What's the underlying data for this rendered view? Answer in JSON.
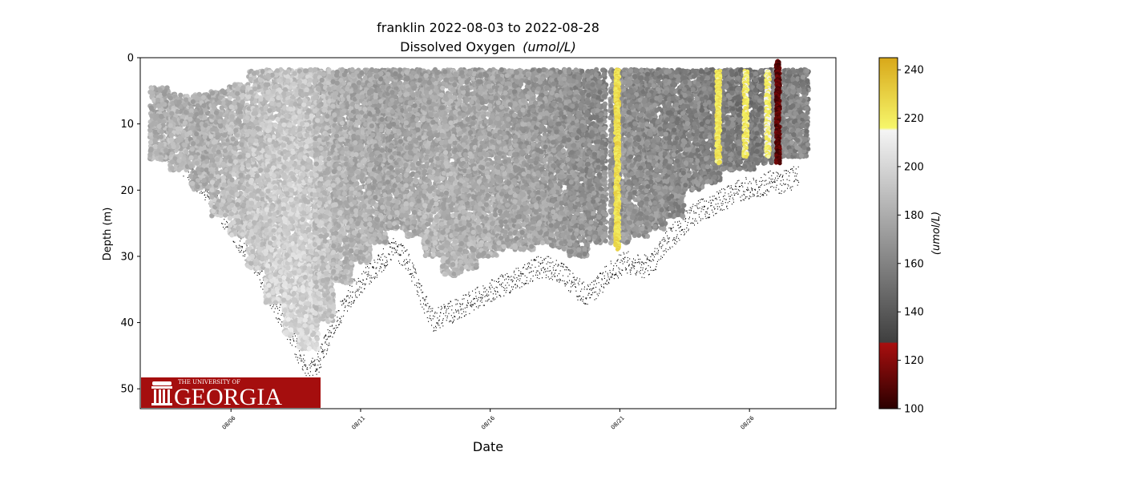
{
  "chart_data": {
    "type": "scatter",
    "title": "franklin 2022-08-03 to 2022-08-28",
    "subtitle": "Dissolved Oxygen",
    "subtitle_unit": "(umol/L)",
    "xlabel": "Date",
    "ylabel": "Depth (m)",
    "x_tick_labels": [
      "08/06",
      "08/11",
      "08/16",
      "08/21",
      "08/26"
    ],
    "x_tick_values": [
      "2022-08-06",
      "2022-08-11",
      "2022-08-16",
      "2022-08-21",
      "2022-08-26"
    ],
    "xlim": [
      "2022-08-02T12:00",
      "2022-08-29T08:00"
    ],
    "ylim": [
      53,
      0
    ],
    "y_ticks": [
      0,
      10,
      20,
      30,
      40,
      50
    ],
    "y_inverted": true,
    "grid": false,
    "colorbar": {
      "label": "(umol/L)",
      "range": [
        100,
        245
      ],
      "ticks": [
        100,
        120,
        140,
        160,
        180,
        200,
        220,
        240
      ],
      "stops": [
        {
          "value": 100,
          "color": "#2b0000"
        },
        {
          "value": 127,
          "color": "#a80f0f"
        },
        {
          "value": 127.5,
          "color": "#3f3f3f"
        },
        {
          "value": 215,
          "color": "#f5f5f5"
        },
        {
          "value": 216,
          "color": "#f6f66a"
        },
        {
          "value": 245,
          "color": "#d8a81a"
        }
      ]
    },
    "series": [
      {
        "description_key": "dive-profiles",
        "profiles": [
          {
            "day": 3.25,
            "top": 4.5,
            "bottom": 15.5,
            "value": 180
          },
          {
            "day": 4.0,
            "top": 5.5,
            "bottom": 17,
            "value": 183
          },
          {
            "day": 4.8,
            "top": 5.5,
            "bottom": 20,
            "value": 180
          },
          {
            "day": 5.6,
            "top": 5,
            "bottom": 24,
            "value": 183
          },
          {
            "day": 6.3,
            "top": 4,
            "bottom": 27,
            "value": 185
          },
          {
            "day": 7.0,
            "top": 2,
            "bottom": 32,
            "value": 188
          },
          {
            "day": 7.7,
            "top": 1.8,
            "bottom": 37,
            "value": 190
          },
          {
            "day": 8.4,
            "top": 1.8,
            "bottom": 42,
            "value": 192
          },
          {
            "day": 9.0,
            "top": 1.8,
            "bottom": 44,
            "value": 190
          },
          {
            "day": 9.6,
            "top": 1.8,
            "bottom": 40,
            "value": 185
          },
          {
            "day": 10.3,
            "top": 1.8,
            "bottom": 34,
            "value": 180
          },
          {
            "day": 11.0,
            "top": 1.8,
            "bottom": 31,
            "value": 178
          },
          {
            "day": 11.7,
            "top": 1.8,
            "bottom": 28,
            "value": 175
          },
          {
            "day": 12.4,
            "top": 1.8,
            "bottom": 26,
            "value": 175
          },
          {
            "day": 13.1,
            "top": 1.8,
            "bottom": 27,
            "value": 176
          },
          {
            "day": 13.8,
            "top": 1.8,
            "bottom": 30,
            "value": 178
          },
          {
            "day": 14.5,
            "top": 1.8,
            "bottom": 33,
            "value": 178
          },
          {
            "day": 15.2,
            "top": 1.8,
            "bottom": 32,
            "value": 176
          },
          {
            "day": 15.9,
            "top": 1.8,
            "bottom": 30,
            "value": 176
          },
          {
            "day": 16.6,
            "top": 1.8,
            "bottom": 29,
            "value": 174
          },
          {
            "day": 17.3,
            "top": 1.8,
            "bottom": 29,
            "value": 172
          },
          {
            "day": 18.0,
            "top": 1.8,
            "bottom": 28,
            "value": 170
          },
          {
            "day": 18.7,
            "top": 1.8,
            "bottom": 29,
            "value": 168
          },
          {
            "day": 19.4,
            "top": 1.8,
            "bottom": 30,
            "value": 165
          },
          {
            "day": 20.1,
            "top": 1.8,
            "bottom": 28,
            "value": 163
          },
          {
            "day": 21.0,
            "top": 1.8,
            "bottom": 28,
            "value": 165
          },
          {
            "day": 21.7,
            "top": 1.8,
            "bottom": 27,
            "value": 163
          },
          {
            "day": 22.4,
            "top": 1.8,
            "bottom": 26,
            "value": 162
          },
          {
            "day": 23.1,
            "top": 1.8,
            "bottom": 24,
            "value": 160
          },
          {
            "day": 23.8,
            "top": 1.8,
            "bottom": 20,
            "value": 160
          },
          {
            "day": 24.5,
            "top": 1.8,
            "bottom": 19,
            "value": 158
          },
          {
            "day": 25.2,
            "top": 1.8,
            "bottom": 17,
            "value": 158
          },
          {
            "day": 25.9,
            "top": 1.8,
            "bottom": 17,
            "value": 155
          },
          {
            "day": 26.6,
            "top": 1.8,
            "bottom": 16,
            "value": 155
          },
          {
            "day": 27.3,
            "top": 1.8,
            "bottom": 15,
            "value": 160
          },
          {
            "day": 27.9,
            "top": 1.8,
            "bottom": 15,
            "value": 160
          }
        ],
        "anomalies": [
          {
            "day": 20.9,
            "top": 1.8,
            "bottom": 29,
            "value": 225
          },
          {
            "day": 24.8,
            "top": 2,
            "bottom": 16,
            "value": 222
          },
          {
            "day": 25.85,
            "top": 2,
            "bottom": 15,
            "value": 220
          },
          {
            "day": 26.7,
            "top": 2,
            "bottom": 15,
            "value": 218
          },
          {
            "day": 27.1,
            "top": 0.5,
            "bottom": 16,
            "value": 110
          }
        ]
      }
    ],
    "bottom_depth": [
      {
        "day": 3.3,
        "depth": 13
      },
      {
        "day": 3.9,
        "depth": 14.5
      },
      {
        "day": 4.5,
        "depth": 17
      },
      {
        "day": 5.0,
        "depth": 19
      },
      {
        "day": 5.5,
        "depth": 22
      },
      {
        "day": 6.0,
        "depth": 25
      },
      {
        "day": 6.5,
        "depth": 28
      },
      {
        "day": 7.0,
        "depth": 31
      },
      {
        "day": 7.5,
        "depth": 35
      },
      {
        "day": 8.0,
        "depth": 39
      },
      {
        "day": 8.5,
        "depth": 43
      },
      {
        "day": 9.0,
        "depth": 47
      },
      {
        "day": 9.4,
        "depth": 45
      },
      {
        "day": 9.8,
        "depth": 41
      },
      {
        "day": 10.3,
        "depth": 37
      },
      {
        "day": 10.8,
        "depth": 34
      },
      {
        "day": 11.3,
        "depth": 32
      },
      {
        "day": 11.8,
        "depth": 30
      },
      {
        "day": 12.3,
        "depth": 28
      },
      {
        "day": 12.8,
        "depth": 30
      },
      {
        "day": 13.3,
        "depth": 35
      },
      {
        "day": 13.8,
        "depth": 39
      },
      {
        "day": 14.3,
        "depth": 38
      },
      {
        "day": 14.8,
        "depth": 37
      },
      {
        "day": 15.3,
        "depth": 36
      },
      {
        "day": 15.8,
        "depth": 35
      },
      {
        "day": 16.3,
        "depth": 34
      },
      {
        "day": 16.8,
        "depth": 33
      },
      {
        "day": 17.3,
        "depth": 32
      },
      {
        "day": 17.8,
        "depth": 31
      },
      {
        "day": 18.3,
        "depth": 31
      },
      {
        "day": 18.8,
        "depth": 32
      },
      {
        "day": 19.3,
        "depth": 34
      },
      {
        "day": 19.8,
        "depth": 35
      },
      {
        "day": 20.3,
        "depth": 33
      },
      {
        "day": 20.8,
        "depth": 31
      },
      {
        "day": 21.3,
        "depth": 30
      },
      {
        "day": 21.8,
        "depth": 31
      },
      {
        "day": 22.3,
        "depth": 30
      },
      {
        "day": 22.8,
        "depth": 27
      },
      {
        "day": 23.3,
        "depth": 25
      },
      {
        "day": 23.8,
        "depth": 23
      },
      {
        "day": 24.3,
        "depth": 22
      },
      {
        "day": 24.8,
        "depth": 21
      },
      {
        "day": 25.3,
        "depth": 20
      },
      {
        "day": 25.8,
        "depth": 19
      },
      {
        "day": 26.3,
        "depth": 19
      },
      {
        "day": 26.8,
        "depth": 18
      },
      {
        "day": 27.3,
        "depth": 18
      },
      {
        "day": 27.9,
        "depth": 17
      }
    ],
    "logo": {
      "text_small": "THE UNIVERSITY OF",
      "text_large": "GEORGIA",
      "background": "#a50e0e",
      "text_color": "#ffffff"
    }
  }
}
